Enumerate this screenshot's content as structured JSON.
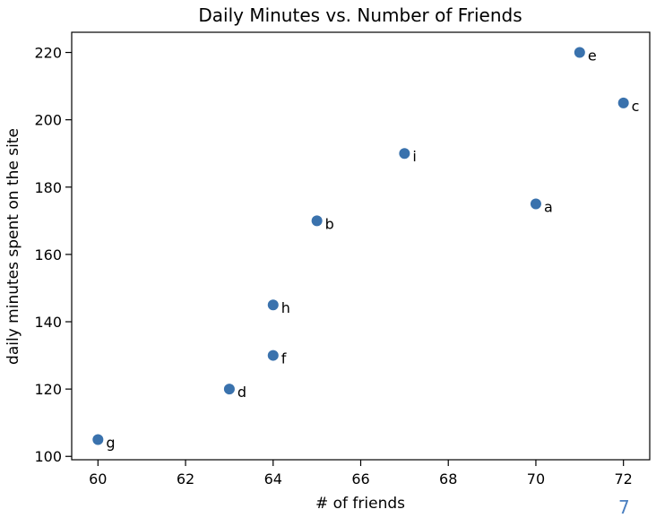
{
  "chart_data": {
    "type": "scatter",
    "title": "Daily Minutes vs. Number of Friends",
    "xlabel": "# of friends",
    "ylabel": "daily minutes spent on the site",
    "xlim": [
      59.4,
      72.6
    ],
    "ylim": [
      99.0,
      226.0
    ],
    "xticks": [
      60,
      62,
      64,
      66,
      68,
      70,
      72
    ],
    "yticks": [
      100,
      120,
      140,
      160,
      180,
      200,
      220
    ],
    "grid": false,
    "marker_color": "#3a72ad",
    "points": [
      {
        "label": "a",
        "x": 70,
        "y": 175
      },
      {
        "label": "b",
        "x": 65,
        "y": 170
      },
      {
        "label": "c",
        "x": 72,
        "y": 205
      },
      {
        "label": "d",
        "x": 63,
        "y": 120
      },
      {
        "label": "e",
        "x": 71,
        "y": 220
      },
      {
        "label": "f",
        "x": 64,
        "y": 130
      },
      {
        "label": "g",
        "x": 60,
        "y": 105
      },
      {
        "label": "h",
        "x": 64,
        "y": 145
      },
      {
        "label": "i",
        "x": 67,
        "y": 190
      }
    ]
  },
  "page_number": "7"
}
